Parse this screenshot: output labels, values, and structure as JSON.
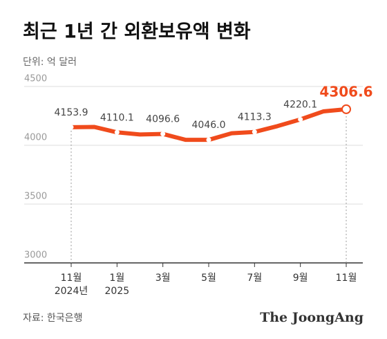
{
  "chart_data": {
    "type": "line",
    "title": "최근 1년 간 외환보유액 변화",
    "subtitle": "단위: 억 달러",
    "source": "자료: 한국은행",
    "brand": "The JoongAng",
    "categories": [
      "11월",
      null,
      "1월",
      null,
      "3월",
      null,
      "5월",
      null,
      "7월",
      null,
      "9월",
      null,
      "11월"
    ],
    "category_years": [
      "2024년",
      null,
      "2025",
      null,
      null,
      null,
      null,
      null,
      null,
      null,
      null,
      null,
      null
    ],
    "values": [
      4153.9,
      4156,
      4110.1,
      4092,
      4096.6,
      4046,
      4046.0,
      4102,
      4113.3,
      4163,
      4220.1,
      4288,
      4306.6
    ],
    "value_labels": [
      "4153.9",
      null,
      "4110.1",
      null,
      "4096.6",
      null,
      "4046.0",
      null,
      "4113.3",
      null,
      "4220.1",
      null,
      "4306.6"
    ],
    "color": "#f04b1c",
    "ylim": [
      3000,
      4500
    ],
    "yticks": [
      3000,
      3500,
      4000,
      4500
    ],
    "grid": true
  }
}
